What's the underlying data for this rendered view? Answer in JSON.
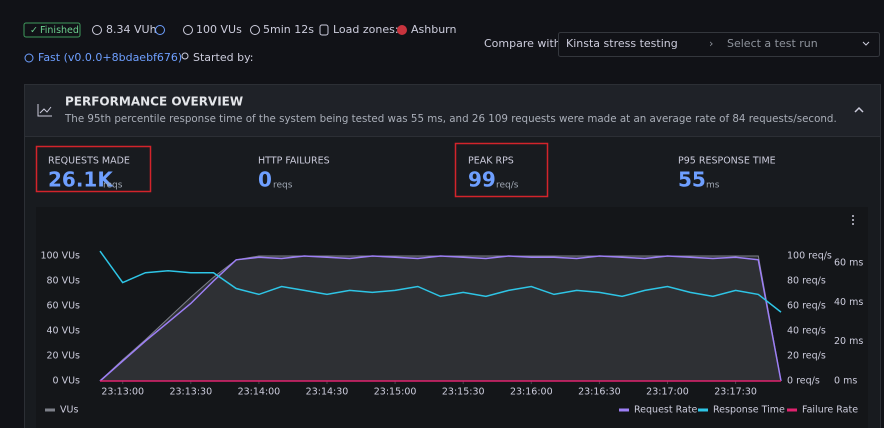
{
  "header": {
    "status": "Finished",
    "vuh": "8.34 VUh",
    "vus": "100 VUs",
    "duration": "5min 12s",
    "load_zones_label": "Load zones:",
    "load_zone": "Ashburn",
    "version": "Fast (v0.0.0+8bdaebf676)",
    "started_by": "Started by:"
  },
  "compare": {
    "label": "Compare with",
    "selected": "Kinsta stress testing",
    "placeholder": "Select a test run"
  },
  "panel": {
    "title": "PERFORMANCE OVERVIEW",
    "description": "The 95th percentile response time of the system being tested was 55 ms, and 26 109 requests were made at an average rate of 84 requests/second."
  },
  "metrics": [
    {
      "label": "REQUESTS MADE",
      "value": "26.1K",
      "unit": "reqs"
    },
    {
      "label": "HTTP FAILURES",
      "value": "0",
      "unit": "reqs"
    },
    {
      "label": "PEAK RPS",
      "value": "99",
      "unit": "req/s"
    },
    {
      "label": "P95 RESPONSE TIME",
      "value": "55",
      "unit": "ms"
    }
  ],
  "chart_data": {
    "type": "line",
    "x": [
      "23:12:50",
      "23:13:00",
      "23:13:10",
      "23:13:20",
      "23:13:30",
      "23:13:40",
      "23:13:50",
      "23:14:00",
      "23:14:10",
      "23:14:20",
      "23:14:30",
      "23:14:40",
      "23:14:50",
      "23:15:00",
      "23:15:10",
      "23:15:20",
      "23:15:30",
      "23:15:40",
      "23:15:50",
      "23:16:00",
      "23:16:10",
      "23:16:20",
      "23:16:30",
      "23:16:40",
      "23:16:50",
      "23:17:00",
      "23:17:10",
      "23:17:20",
      "23:17:30",
      "23:17:40",
      "23:17:50"
    ],
    "xlim": [
      "23:12:50",
      "23:17:50"
    ],
    "xticks": [
      "23:13:00",
      "23:13:30",
      "23:14:00",
      "23:14:30",
      "23:15:00",
      "23:15:30",
      "23:16:00",
      "23:16:30",
      "23:17:00",
      "23:17:30"
    ],
    "ylim": [
      0,
      100
    ],
    "yticks": [
      {
        "value": 0,
        "label": "0 VUs"
      },
      {
        "value": 20,
        "label": "20 VUs"
      },
      {
        "value": 40,
        "label": "40 VUs"
      },
      {
        "value": 60,
        "label": "60 VUs"
      },
      {
        "value": 80,
        "label": "80 VUs"
      },
      {
        "value": 100,
        "label": "100 VUs"
      }
    ],
    "y2lim": [
      0,
      100
    ],
    "y2ticks": [
      {
        "value": 0,
        "label": "0 req/s"
      },
      {
        "value": 20,
        "label": "20 req/s"
      },
      {
        "value": 40,
        "label": "40 req/s"
      },
      {
        "value": 60,
        "label": "60 req/s"
      },
      {
        "value": 80,
        "label": "80 req/s"
      },
      {
        "value": 100,
        "label": "100 req/s"
      }
    ],
    "y3lim": [
      0,
      63.5
    ],
    "y3ticks": [
      {
        "value": 0,
        "label": "0 ms"
      },
      {
        "value": 20,
        "label": "20 ms"
      },
      {
        "value": 40,
        "label": "40 ms"
      },
      {
        "value": 60,
        "label": "60 ms"
      }
    ],
    "series": [
      {
        "name": "VUs",
        "color": "#7d8089",
        "area": true,
        "values": [
          0,
          17,
          33,
          50,
          67,
          83,
          97,
          100,
          100,
          100,
          100,
          100,
          100,
          100,
          100,
          100,
          100,
          100,
          100,
          100,
          100,
          100,
          100,
          100,
          100,
          100,
          100,
          100,
          100,
          100,
          0
        ]
      },
      {
        "name": "Request Rate",
        "color": "#9d7ff5",
        "axis": "y2",
        "values": [
          0,
          16,
          32,
          47,
          62,
          80,
          97,
          99,
          98,
          100,
          99,
          98,
          100,
          99,
          98,
          100,
          99,
          98,
          100,
          99,
          99,
          98,
          100,
          99,
          98,
          100,
          99,
          98,
          99,
          97,
          0
        ]
      },
      {
        "name": "Response Time",
        "color": "#2ec5e6",
        "axis": "y3",
        "values": [
          66,
          50,
          55,
          56,
          55,
          55,
          47,
          44,
          48,
          46,
          44,
          46,
          45,
          46,
          48,
          43,
          45,
          43,
          46,
          48,
          44,
          46,
          45,
          43,
          46,
          48,
          45,
          43,
          46,
          44,
          35
        ]
      },
      {
        "name": "Failure Rate",
        "color": "#e0226e",
        "axis": "y2",
        "values": [
          0,
          0,
          0,
          0,
          0,
          0,
          0,
          0,
          0,
          0,
          0,
          0,
          0,
          0,
          0,
          0,
          0,
          0,
          0,
          0,
          0,
          0,
          0,
          0,
          0,
          0,
          0,
          0,
          0,
          0,
          0
        ]
      }
    ]
  }
}
